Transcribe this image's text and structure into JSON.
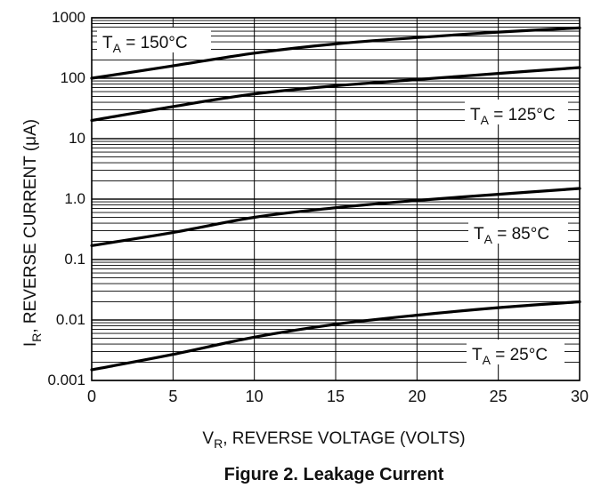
{
  "chart_data": {
    "type": "line",
    "title": "Figure 2. Leakage Current",
    "xlabel": "V_R, REVERSE VOLTAGE (VOLTS)",
    "xlabel_main": "V",
    "xlabel_sub": "R",
    "xlabel_rest": ", REVERSE VOLTAGE (VOLTS)",
    "ylabel": "I_R, REVERSE CURRENT (μA)",
    "ylabel_main": "I",
    "ylabel_sub": "R",
    "ylabel_rest": ", REVERSE CURRENT (μA)",
    "y_scale": "log",
    "xlim": [
      0,
      30
    ],
    "ylim": [
      0.001,
      1000
    ],
    "grid": true,
    "x_ticks": [
      "0",
      "5",
      "10",
      "15",
      "20",
      "25",
      "30"
    ],
    "y_ticks": [
      "0.001",
      "0.01",
      "0.1",
      "1.0",
      "10",
      "100",
      "1000"
    ],
    "series": [
      {
        "name": "T_A = 150°C",
        "label_main": "T",
        "label_sub": "A",
        "label_rest": " = 150°C",
        "x": [
          0,
          5,
          10,
          15,
          20,
          25,
          30
        ],
        "y": [
          100,
          160,
          260,
          370,
          470,
          580,
          680
        ]
      },
      {
        "name": "T_A = 125°C",
        "label_main": "T",
        "label_sub": "A",
        "label_rest": " = 125°C",
        "x": [
          0,
          5,
          10,
          15,
          20,
          25,
          30
        ],
        "y": [
          20,
          34,
          55,
          75,
          95,
          120,
          150
        ]
      },
      {
        "name": "T_A = 85°C",
        "label_main": "T",
        "label_sub": "A",
        "label_rest": " = 85°C",
        "x": [
          0,
          5,
          10,
          15,
          20,
          25,
          30
        ],
        "y": [
          0.17,
          0.28,
          0.5,
          0.72,
          0.95,
          1.2,
          1.5
        ]
      },
      {
        "name": "T_A = 25°C",
        "label_main": "T",
        "label_sub": "A",
        "label_rest": " = 25°C",
        "x": [
          0,
          5,
          10,
          15,
          20,
          25,
          30
        ],
        "y": [
          0.0015,
          0.0027,
          0.0052,
          0.0085,
          0.012,
          0.016,
          0.02
        ]
      }
    ]
  }
}
